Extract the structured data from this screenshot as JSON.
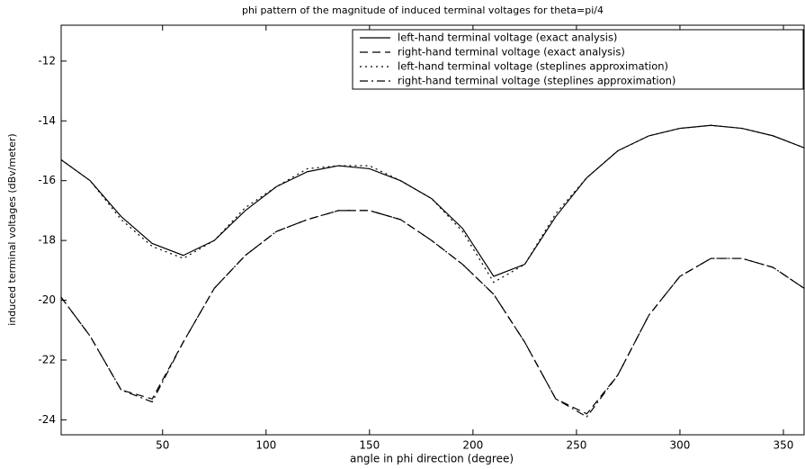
{
  "chart_data": {
    "type": "line",
    "title": "phi pattern of the magnitude of induced terminal voltages for theta=pi/4",
    "x_label": "angle in phi direction (degree)",
    "y_label": "induced terminal voltages (dBv/meter)",
    "x": [
      1,
      15,
      30,
      45,
      60,
      75,
      90,
      105,
      120,
      135,
      150,
      165,
      180,
      195,
      210,
      225,
      240,
      255,
      270,
      285,
      300,
      315,
      330,
      345,
      360
    ],
    "series": [
      {
        "name": "left-hand terminal voltage (exact analysis)",
        "color": "#000000",
        "dash": "solid",
        "values": [
          -15.3,
          -16.0,
          -17.2,
          -18.1,
          -18.5,
          -18.0,
          -17.0,
          -16.2,
          -15.7,
          -15.5,
          -15.6,
          -16.0,
          -16.6,
          -17.6,
          -19.2,
          -18.8,
          -17.2,
          -15.9,
          -15.0,
          -14.5,
          -14.25,
          -14.15,
          -14.25,
          -14.5,
          -14.9
        ]
      },
      {
        "name": "right-hand terminal voltage (exact analysis)",
        "color": "#000000",
        "dash": "dashed",
        "values": [
          -19.9,
          -21.2,
          -23.0,
          -23.3,
          -21.4,
          -19.6,
          -18.5,
          -17.7,
          -17.3,
          -17.0,
          -17.0,
          -17.3,
          -18.0,
          -18.8,
          -19.8,
          -21.4,
          -23.3,
          -23.8,
          -22.5,
          -20.5,
          -19.2,
          -18.6,
          -18.6,
          -18.9,
          -19.6
        ]
      },
      {
        "name": "left-hand terminal voltage (steplines approximation)",
        "color": "#000000",
        "dash": "dotted",
        "values": [
          -15.3,
          -16.0,
          -17.3,
          -18.2,
          -18.6,
          -18.0,
          -16.9,
          -16.2,
          -15.6,
          -15.5,
          -15.5,
          -16.0,
          -16.6,
          -17.7,
          -19.4,
          -18.8,
          -17.1,
          -15.9,
          -15.0,
          -14.5,
          -14.25,
          -14.15,
          -14.25,
          -14.5,
          -14.9
        ]
      },
      {
        "name": "right-hand terminal voltage (steplines approximation)",
        "color": "#000000",
        "dash": "dashdot",
        "values": [
          -19.9,
          -21.2,
          -23.0,
          -23.4,
          -21.4,
          -19.6,
          -18.5,
          -17.7,
          -17.3,
          -17.0,
          -17.0,
          -17.3,
          -18.0,
          -18.8,
          -19.8,
          -21.4,
          -23.3,
          -23.9,
          -22.5,
          -20.5,
          -19.2,
          -18.6,
          -18.6,
          -18.9,
          -19.6
        ]
      }
    ],
    "xlim": [
      1,
      360
    ],
    "ylim": [
      -24.5,
      -10.8
    ],
    "xticks": [
      50,
      100,
      150,
      200,
      250,
      300,
      350
    ],
    "yticks": [
      -12,
      -14,
      -16,
      -18,
      -20,
      -22,
      -24
    ],
    "legend": "top-right"
  }
}
